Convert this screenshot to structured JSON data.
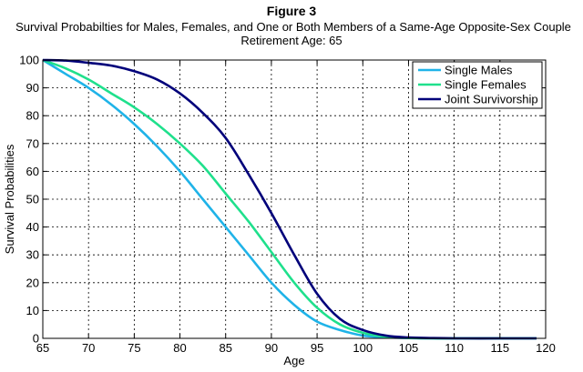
{
  "chart_data": {
    "type": "line",
    "title": "Figure 3",
    "subtitle": "Survival Probabilties for Males, Females, and One or Both Members of a Same-Age Opposite-Sex Couple",
    "subtitle2": "Retirement Age: 65",
    "xlabel": "Age",
    "ylabel": "Survival Probabilities",
    "xlim": [
      65,
      120
    ],
    "ylim": [
      0,
      100
    ],
    "xticks": [
      65,
      70,
      75,
      80,
      85,
      90,
      95,
      100,
      105,
      110,
      115,
      120
    ],
    "yticks": [
      0,
      10,
      20,
      30,
      40,
      50,
      60,
      70,
      80,
      90,
      100
    ],
    "grid": true,
    "legend_position": "top-right",
    "x": [
      65,
      67.5,
      70,
      72.5,
      75,
      77.5,
      80,
      82.5,
      85,
      87.5,
      90,
      92.5,
      95,
      97.5,
      100,
      102.5,
      105,
      107.5,
      110,
      115,
      119
    ],
    "series": [
      {
        "name": "Single Males",
        "color": "#1fb3e8",
        "values": [
          100,
          95,
          90,
          84,
          77,
          69,
          60,
          50,
          40,
          30,
          20,
          12,
          6,
          3,
          1,
          0.4,
          0.1,
          0,
          0,
          0,
          0
        ]
      },
      {
        "name": "Single Females",
        "color": "#1fe08c",
        "values": [
          100,
          97,
          93,
          88,
          83,
          77,
          70,
          62,
          52,
          42,
          31,
          20,
          11,
          5,
          2,
          0.6,
          0.2,
          0,
          0,
          0,
          0
        ]
      },
      {
        "name": "Joint Survivorship",
        "color": "#00007a",
        "values": [
          100,
          99.8,
          99,
          98,
          96,
          93,
          88,
          81,
          72,
          59,
          45,
          30,
          16,
          7,
          3,
          1,
          0.3,
          0.1,
          0,
          0,
          0
        ]
      }
    ]
  }
}
